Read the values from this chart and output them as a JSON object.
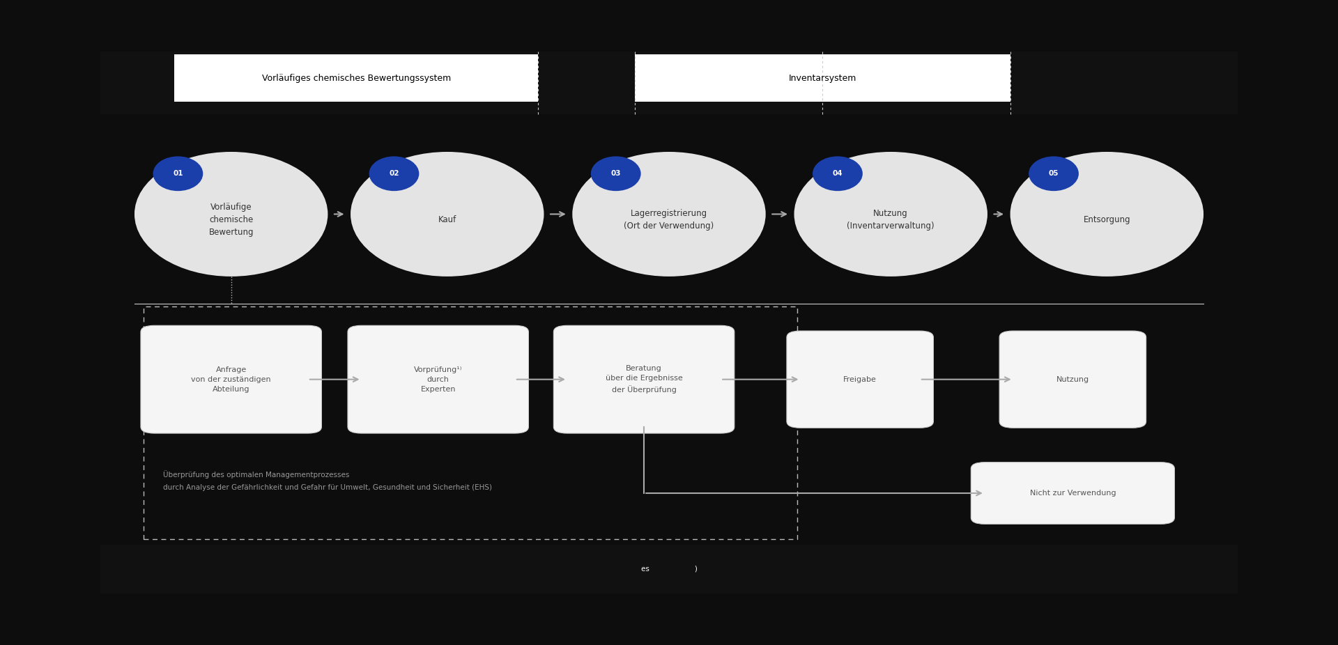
{
  "outer_bg": "#0d0d0d",
  "main_bg": "#ffffff",
  "header_bg": "#111111",
  "circle_color": "#e4e4e4",
  "badge_color": "#1a3faa",
  "badge_text": "#ffffff",
  "step_text_color": "#333333",
  "flow_box_color": "#f5f5f5",
  "flow_box_edge": "#cccccc",
  "flow_text_color": "#555555",
  "arrow_color": "#aaaaaa",
  "dashed_color": "#bbbbbb",
  "ehs_text_color": "#999999",
  "step_nums": [
    "01",
    "02",
    "03",
    "04",
    "05"
  ],
  "step_labels": [
    "Vorläufige\nchemische\nBewertung",
    "Kauf",
    "Lagerregistrierung\n(Ort der Verwendung)",
    "Nutzung\n(Inventarverwaltung)",
    "Entsorgung"
  ],
  "phase1_box_text": "Vorläufiges chemisches Bewertungssystem",
  "phase2_box_text": "Inventarsystem",
  "flow_box_labels": [
    "Anfrage\nvon der zuständigen\nAbteilung",
    "Vorprüfung¹⧣\ndurch\nExperten",
    "Beratung\nüber die Ergebnisse\nder Überprüfung",
    "Freigabe",
    "Nutzung",
    "Nicht zur Verwendung"
  ],
  "ehs_line1": "Überprüfung des optimalen Managementprozesses",
  "ehs_line2": "durch Analyse der Gefährlichkeit und Gefahr für Umwelt, Gesundheit und Sicherheit (EHS)",
  "footer_text": "es                    )"
}
